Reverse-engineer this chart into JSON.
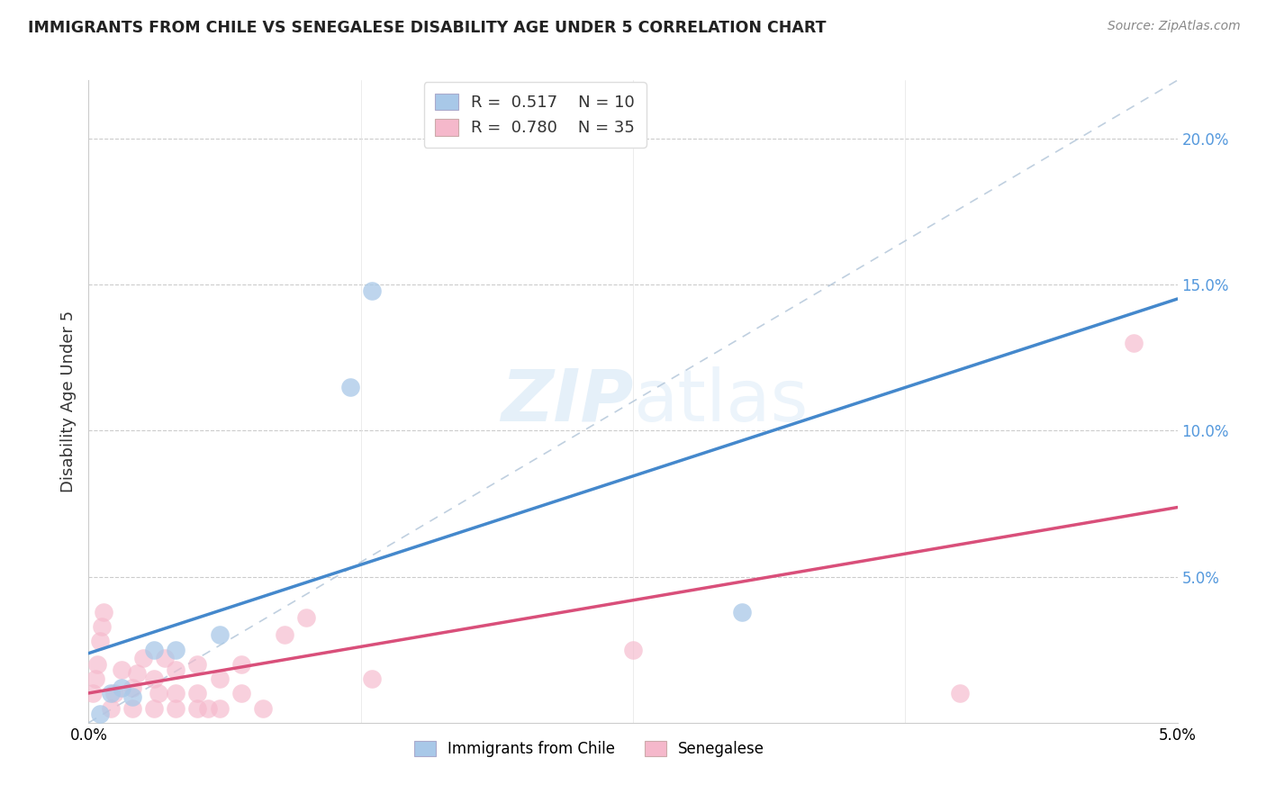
{
  "title": "IMMIGRANTS FROM CHILE VS SENEGALESE DISABILITY AGE UNDER 5 CORRELATION CHART",
  "source": "Source: ZipAtlas.com",
  "ylabel": "Disability Age Under 5",
  "xlim": [
    0,
    0.05
  ],
  "ylim": [
    0,
    0.22
  ],
  "legend1_r": "0.517",
  "legend1_n": "10",
  "legend2_r": "0.780",
  "legend2_n": "35",
  "blue_scatter_color": "#a8c8e8",
  "pink_scatter_color": "#f5b8cb",
  "blue_line_color": "#4488cc",
  "pink_line_color": "#d94f7a",
  "gray_dash_color": "#b0c4d8",
  "watermark_color": "#d0e4f5",
  "background_color": "#ffffff",
  "title_fontsize": 12.5,
  "source_fontsize": 10,
  "ytick_color": "#5599dd",
  "blue_points_x": [
    0.0005,
    0.001,
    0.0015,
    0.002,
    0.003,
    0.004,
    0.006,
    0.012,
    0.013,
    0.03
  ],
  "blue_points_y": [
    0.003,
    0.01,
    0.012,
    0.009,
    0.025,
    0.025,
    0.03,
    0.115,
    0.148,
    0.038
  ],
  "pink_points_x": [
    0.0002,
    0.0003,
    0.0004,
    0.0005,
    0.0006,
    0.0007,
    0.001,
    0.0012,
    0.0015,
    0.002,
    0.002,
    0.0022,
    0.0025,
    0.003,
    0.0032,
    0.003,
    0.0035,
    0.004,
    0.004,
    0.004,
    0.005,
    0.005,
    0.005,
    0.0055,
    0.006,
    0.006,
    0.007,
    0.007,
    0.008,
    0.009,
    0.01,
    0.013,
    0.025,
    0.04,
    0.048
  ],
  "pink_points_y": [
    0.01,
    0.015,
    0.02,
    0.028,
    0.033,
    0.038,
    0.005,
    0.01,
    0.018,
    0.005,
    0.012,
    0.017,
    0.022,
    0.005,
    0.01,
    0.015,
    0.022,
    0.005,
    0.01,
    0.018,
    0.005,
    0.01,
    0.02,
    0.005,
    0.015,
    0.005,
    0.01,
    0.02,
    0.005,
    0.03,
    0.036,
    0.015,
    0.025,
    0.01,
    0.13
  ]
}
